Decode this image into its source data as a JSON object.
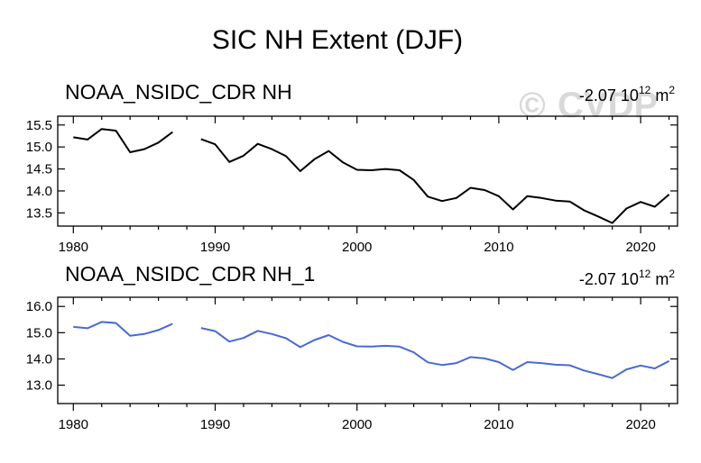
{
  "figure": {
    "title": "SIC NH Extent (DJF)",
    "watermark_symbol": "©",
    "watermark_text": "CVDP"
  },
  "chart_data": [
    {
      "type": "line",
      "title": "NOAA_NSIDC_CDR NH",
      "trend_value": "-2.07",
      "trend_base": "10",
      "trend_exp": "12",
      "trend_unit": "m",
      "trend_unit_exp": "2",
      "color": "#000000",
      "xlim": [
        1978.9,
        2022.6
      ],
      "ylim": [
        13.2,
        15.7
      ],
      "xticks": [
        1980,
        1990,
        2000,
        2010,
        2020
      ],
      "yticks": [
        13.5,
        14.0,
        14.5,
        15.0,
        15.5
      ],
      "ytick_labels": [
        "13.5",
        "14.0",
        "14.5",
        "15.0",
        "15.5"
      ],
      "x": [
        1980,
        1981,
        1982,
        1983,
        1984,
        1985,
        1986,
        1987,
        1988,
        1989,
        1990,
        1991,
        1992,
        1993,
        1994,
        1995,
        1996,
        1997,
        1998,
        1999,
        2000,
        2001,
        2002,
        2003,
        2004,
        2005,
        2006,
        2007,
        2008,
        2009,
        2010,
        2011,
        2012,
        2013,
        2014,
        2015,
        2016,
        2017,
        2018,
        2019,
        2020,
        2021,
        2022
      ],
      "y": [
        15.22,
        15.17,
        15.41,
        15.37,
        14.88,
        14.95,
        15.1,
        15.34,
        null,
        15.18,
        15.06,
        14.66,
        14.8,
        15.07,
        14.95,
        14.79,
        14.45,
        14.72,
        14.91,
        14.65,
        14.48,
        14.47,
        14.5,
        14.47,
        14.25,
        13.87,
        13.77,
        13.84,
        14.07,
        14.02,
        13.88,
        13.58,
        13.88,
        13.84,
        13.78,
        13.76,
        13.56,
        13.42,
        13.27,
        13.6,
        13.75,
        13.64,
        13.92
      ]
    },
    {
      "type": "line",
      "title": "NOAA_NSIDC_CDR NH_1",
      "trend_value": "-2.07",
      "trend_base": "10",
      "trend_exp": "12",
      "trend_unit": "m",
      "trend_unit_exp": "2",
      "color": "#4a6ad0",
      "xlim": [
        1978.9,
        2022.6
      ],
      "ylim": [
        12.3,
        16.35
      ],
      "xticks": [
        1980,
        1990,
        2000,
        2010,
        2020
      ],
      "yticks": [
        13.0,
        14.0,
        15.0,
        16.0
      ],
      "ytick_labels": [
        "13.0",
        "14.0",
        "15.0",
        "16.0"
      ],
      "x": [
        1980,
        1981,
        1982,
        1983,
        1984,
        1985,
        1986,
        1987,
        1988,
        1989,
        1990,
        1991,
        1992,
        1993,
        1994,
        1995,
        1996,
        1997,
        1998,
        1999,
        2000,
        2001,
        2002,
        2003,
        2004,
        2005,
        2006,
        2007,
        2008,
        2009,
        2010,
        2011,
        2012,
        2013,
        2014,
        2015,
        2016,
        2017,
        2018,
        2019,
        2020,
        2021,
        2022
      ],
      "y": [
        15.22,
        15.17,
        15.41,
        15.37,
        14.88,
        14.95,
        15.1,
        15.34,
        null,
        15.18,
        15.06,
        14.66,
        14.8,
        15.07,
        14.95,
        14.79,
        14.45,
        14.72,
        14.91,
        14.65,
        14.48,
        14.47,
        14.5,
        14.47,
        14.25,
        13.87,
        13.77,
        13.84,
        14.07,
        14.02,
        13.88,
        13.58,
        13.88,
        13.84,
        13.78,
        13.76,
        13.56,
        13.42,
        13.27,
        13.6,
        13.75,
        13.64,
        13.92
      ]
    }
  ]
}
